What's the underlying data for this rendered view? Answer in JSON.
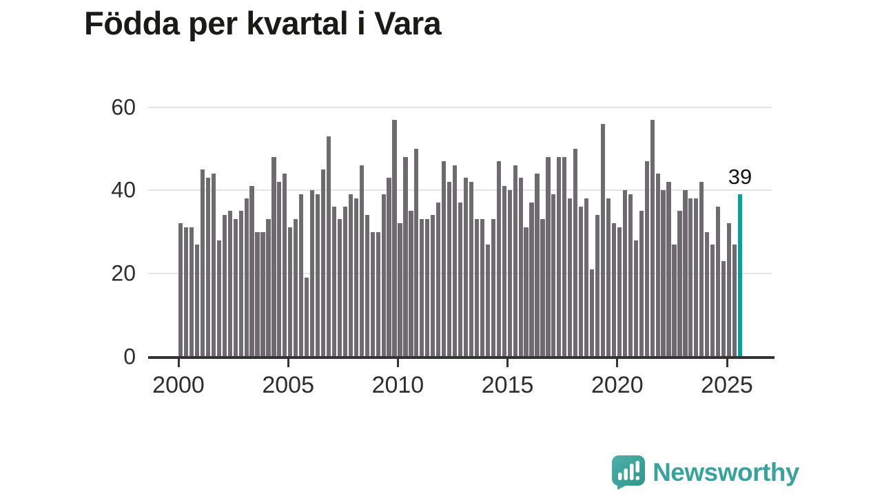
{
  "title": "Födda per kvartal i Vara",
  "chart_data": {
    "type": "bar",
    "title": "Födda per kvartal i Vara",
    "x_start": "2000-Q1",
    "x_end": "2025-Q3",
    "values": [
      32,
      31,
      31,
      27,
      45,
      43,
      44,
      28,
      34,
      35,
      33,
      35,
      38,
      41,
      30,
      30,
      33,
      48,
      42,
      44,
      31,
      33,
      39,
      19,
      40,
      39,
      45,
      53,
      36,
      33,
      36,
      39,
      38,
      46,
      34,
      30,
      30,
      39,
      43,
      57,
      32,
      48,
      35,
      50,
      33,
      33,
      34,
      37,
      47,
      42,
      46,
      37,
      43,
      42,
      33,
      33,
      27,
      33,
      47,
      41,
      40,
      46,
      43,
      31,
      37,
      44,
      33,
      48,
      39,
      48,
      48,
      38,
      50,
      36,
      38,
      21,
      34,
      56,
      38,
      32,
      31,
      40,
      39,
      28,
      35,
      47,
      57,
      44,
      40,
      42,
      27,
      35,
      40,
      38,
      38,
      42,
      30,
      27,
      36,
      23,
      32,
      27,
      39
    ],
    "quarters_per_year": 4,
    "first_year": 2000,
    "highlight_index": 102,
    "highlight_label": "39",
    "xticks": [
      "2000",
      "2005",
      "2010",
      "2015",
      "2020",
      "2025"
    ],
    "yticks": [
      0,
      20,
      40,
      60
    ],
    "ylim": [
      0,
      60
    ],
    "grid": "horizontal",
    "legend": "none",
    "bar_color": "#6e6a70",
    "highlight_color": "#00a29a"
  },
  "annotation": {
    "label": "39"
  },
  "footer": {
    "brand": "Newsworthy"
  },
  "colors": {
    "bar": "#6e6a70",
    "highlight": "#00a29a",
    "grid": "#e4e4e4",
    "axis": "#333333",
    "tick_label": "#2d2d2d",
    "title": "#1a1a16",
    "logo": "#3aa29a"
  }
}
